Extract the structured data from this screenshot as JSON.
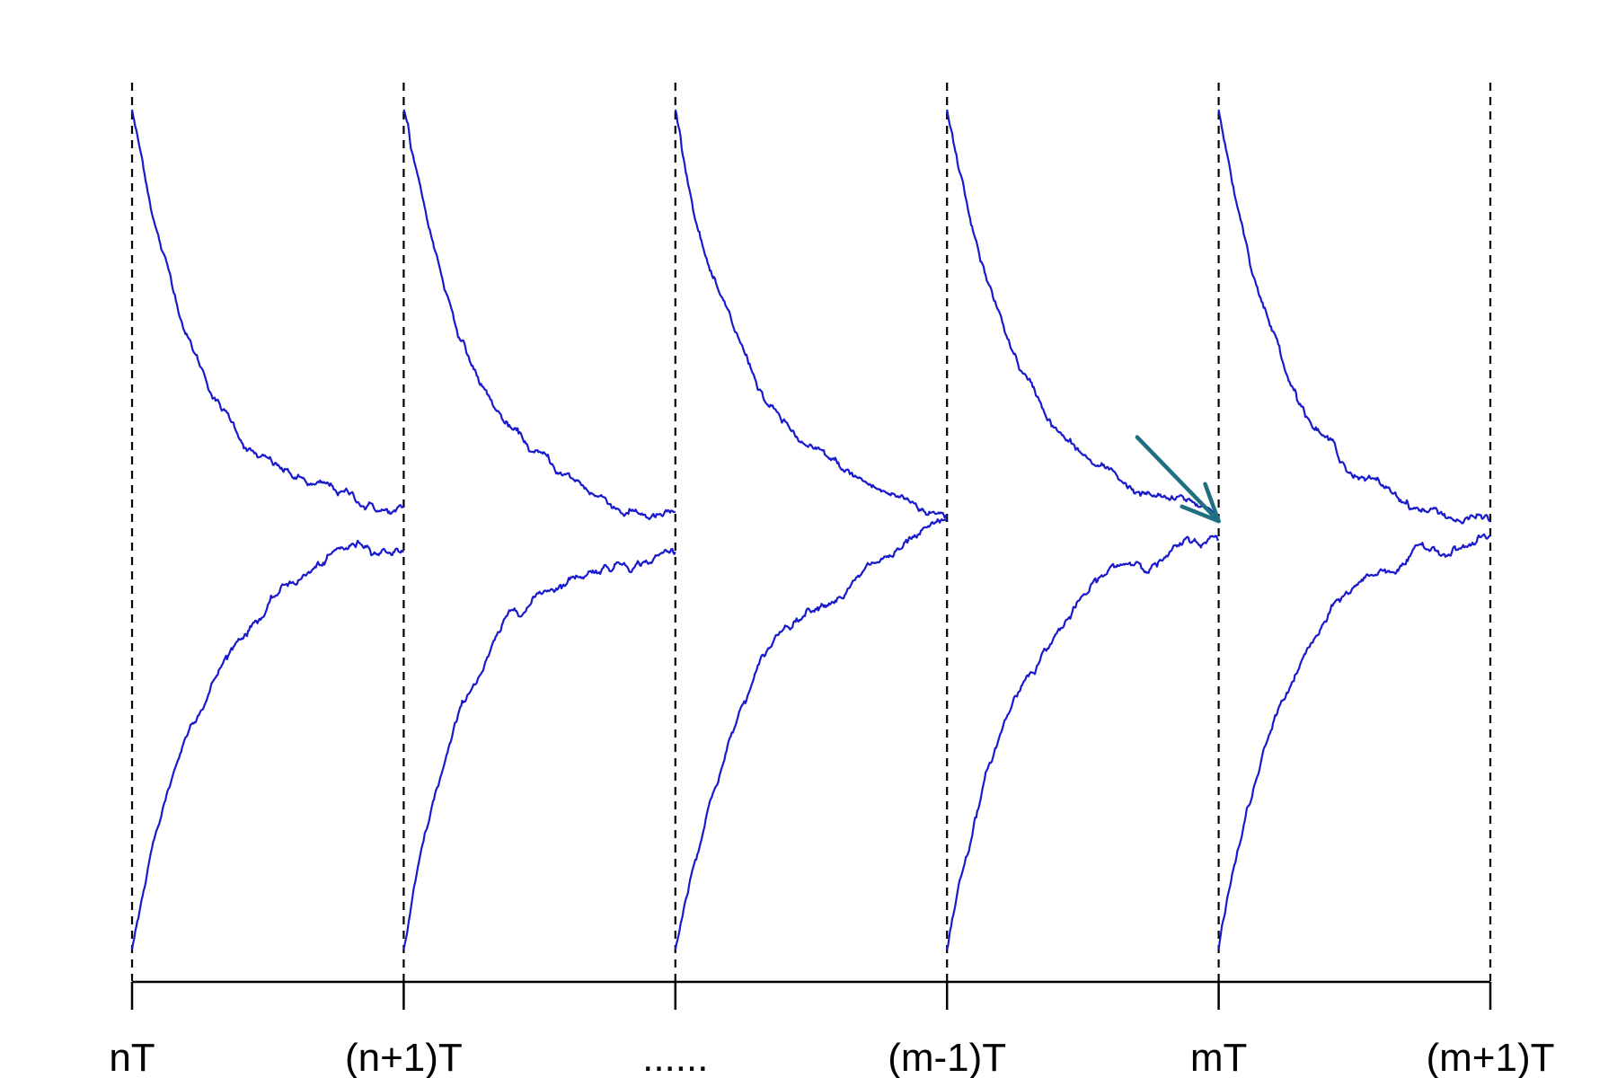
{
  "chart_data": {
    "type": "line",
    "title": "",
    "xlabel": "",
    "ylabel": "",
    "grid": false,
    "legend": "none",
    "tick_labels": [
      "nT",
      "(n+1)T",
      "......",
      "(m-1)T",
      "mT",
      "(m+1)T"
    ],
    "xlim": [
      0,
      5
    ],
    "ylim": [
      -1,
      1
    ],
    "periods": 5,
    "boundaries": [
      0,
      1,
      2,
      3,
      4,
      5
    ],
    "start_upper": 1.0,
    "start_lower": -1.0,
    "arrow": {
      "from": [
        3.7,
        0.22
      ],
      "to": [
        4.0,
        0.02
      ]
    },
    "colors": {
      "curve": "#1a1acd",
      "arrow": "#1f6f80",
      "axis": "#000000"
    }
  }
}
